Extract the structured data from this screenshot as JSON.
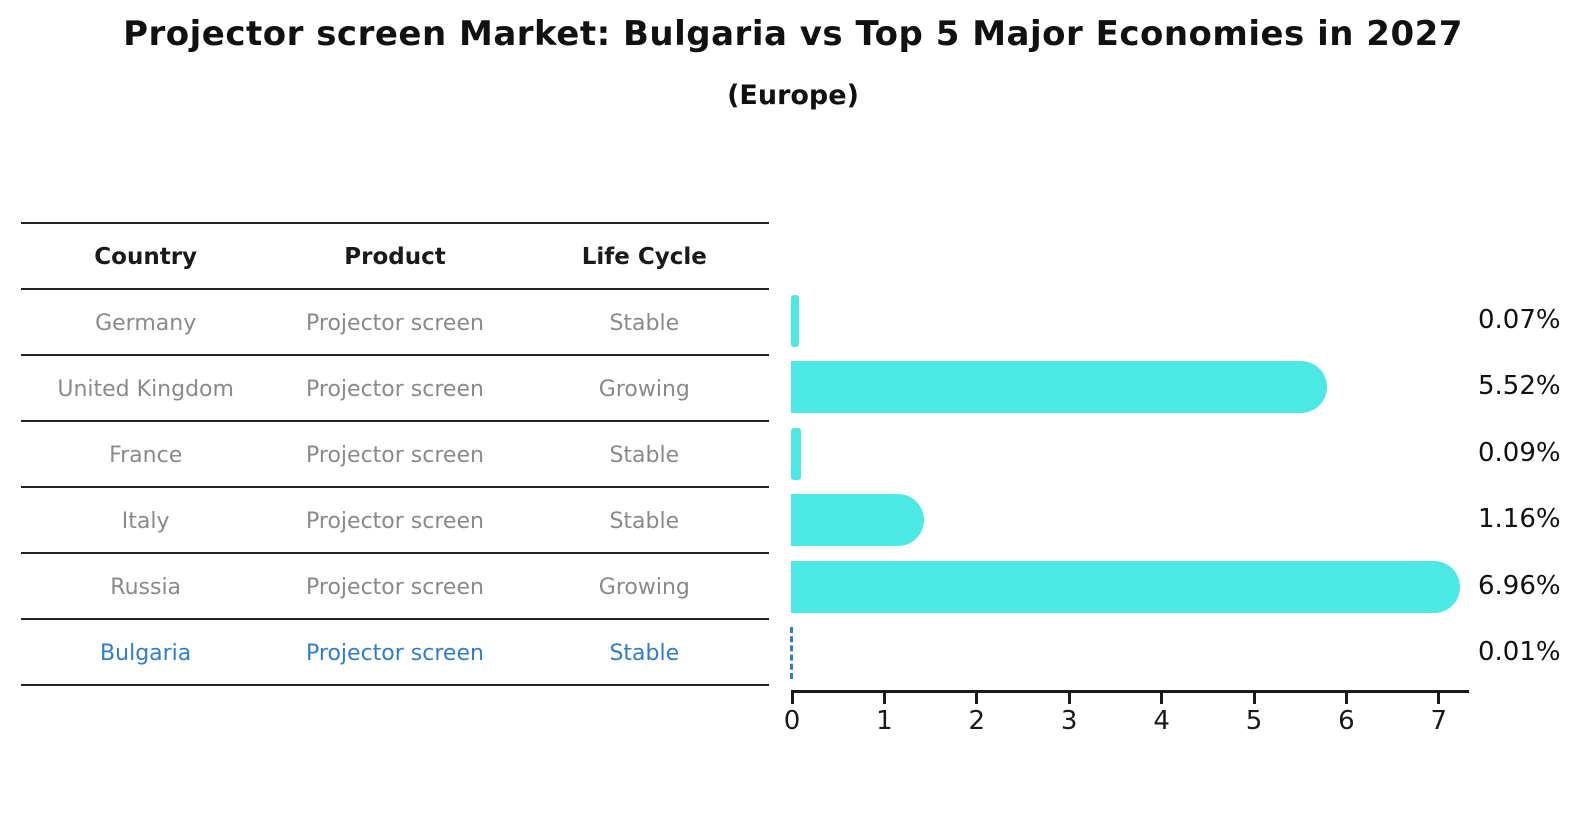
{
  "title": "Projector screen Market: Bulgaria vs Top 5 Major Economies in 2027",
  "subtitle": "(Europe)",
  "table": {
    "headers": [
      "Country",
      "Product",
      "Life Cycle"
    ],
    "rows": [
      {
        "country": "Germany",
        "product": "Projector screen",
        "life_cycle": "Stable",
        "value_label": "0.07%",
        "highlight": false
      },
      {
        "country": "United Kingdom",
        "product": "Projector screen",
        "life_cycle": "Growing",
        "value_label": "5.52%",
        "highlight": false
      },
      {
        "country": "France",
        "product": "Projector screen",
        "life_cycle": "Stable",
        "value_label": "0.09%",
        "highlight": false
      },
      {
        "country": "Italy",
        "product": "Projector screen",
        "life_cycle": "Stable",
        "value_label": "1.16%",
        "highlight": false
      },
      {
        "country": "Russia",
        "product": "Projector screen",
        "life_cycle": "Growing",
        "value_label": "6.96%",
        "highlight": false
      },
      {
        "country": "Bulgaria",
        "product": "Projector screen",
        "life_cycle": "Stable",
        "value_label": "0.01%",
        "highlight": true
      }
    ]
  },
  "chart_data": {
    "type": "bar",
    "orientation": "horizontal",
    "title": "Projector screen Market: Bulgaria vs Top 5 Major Economies in 2027 (Europe)",
    "categories": [
      "Germany",
      "United Kingdom",
      "France",
      "Italy",
      "Russia",
      "Bulgaria"
    ],
    "values": [
      0.07,
      5.52,
      0.09,
      1.16,
      6.96,
      0.01
    ],
    "value_labels": [
      "0.07%",
      "5.52%",
      "0.09%",
      "1.16%",
      "6.96%",
      "0.01%"
    ],
    "x_ticks": [
      "0",
      "1",
      "2",
      "3",
      "4",
      "5",
      "6",
      "7"
    ],
    "xlim": [
      0,
      7.3
    ],
    "grid": false,
    "legend": "none",
    "bar_color": "#4BE8E4",
    "highlight_index": 5,
    "highlight_style": "dashed-blue-outline",
    "highlight_color": "#2E7EC9"
  },
  "colors": {
    "bar": "#4BE8E4",
    "highlight": "#2E7EC9",
    "muted_text": "#8a8a8a",
    "text": "#111111",
    "rule": "#222222"
  }
}
